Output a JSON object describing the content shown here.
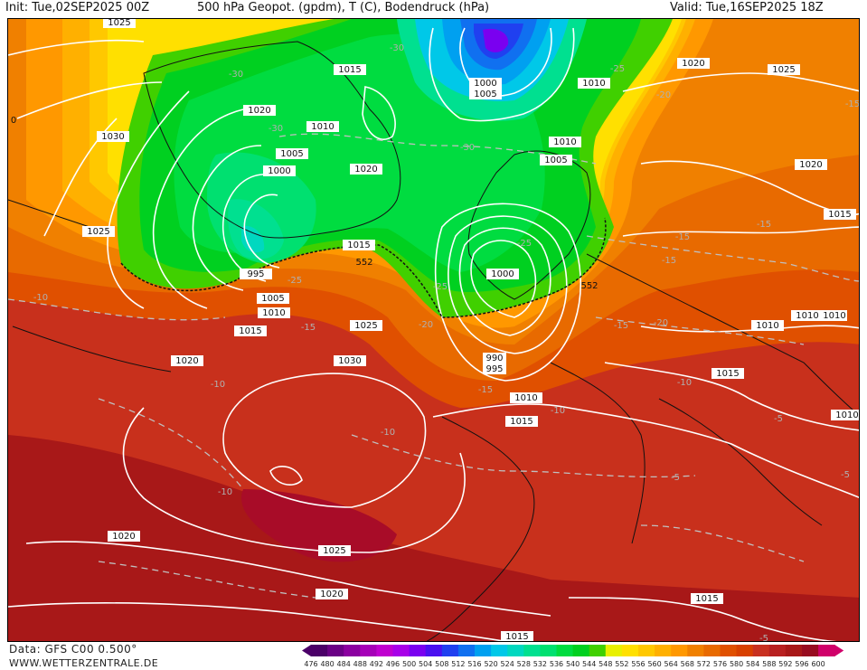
{
  "header": {
    "init": "Init: Tue,02SEP2025 00Z",
    "title": "500 hPa Geopot. (gpdm), T (C), Bodendruck (hPa)",
    "valid": "Valid: Tue,16SEP2025 18Z"
  },
  "footer": {
    "source": "Data: GFS C00 0.500°",
    "site": "WWW.WETTERZENTRALE.DE"
  },
  "colorbar": {
    "ticks": [
      "476",
      "480",
      "484",
      "488",
      "492",
      "496",
      "500",
      "504",
      "508",
      "512",
      "516",
      "520",
      "524",
      "528",
      "532",
      "536",
      "540",
      "544",
      "548",
      "552",
      "556",
      "560",
      "564",
      "568",
      "572",
      "576",
      "580",
      "584",
      "588",
      "592",
      "596",
      "600"
    ],
    "colors": [
      "#4b0068",
      "#6a0085",
      "#8b00a0",
      "#a600b8",
      "#c000d0",
      "#a800e8",
      "#7a00f0",
      "#4a10f0",
      "#2040f0",
      "#1070f0",
      "#00a0f0",
      "#00c8e8",
      "#00d8c0",
      "#00e090",
      "#00e070",
      "#00dc40",
      "#00d020",
      "#40d000",
      "#e8f000",
      "#ffe000",
      "#ffc800",
      "#ffb000",
      "#ff9800",
      "#f08000",
      "#e86a00",
      "#e05000",
      "#d84000",
      "#c83020",
      "#b82020",
      "#a81818",
      "#980c20",
      "#d0006a"
    ]
  },
  "isobars": [
    "1025",
    "1030",
    "1025",
    "1020",
    "1020",
    "1015",
    "1010",
    "1005",
    "1000",
    "1000",
    "1005",
    "1010",
    "1015",
    "1020",
    "1015",
    "1010",
    "1005",
    "1020",
    "1015",
    "1010",
    "1000",
    "990",
    "995",
    "995",
    "1005",
    "1010",
    "1015",
    "1020",
    "1025",
    "1030",
    "1020",
    "1015",
    "1010",
    "1015",
    "1010",
    "1010",
    "1015",
    "1010",
    "1020",
    "1025",
    "1020",
    "1015",
    "1015",
    "1025",
    "1020",
    "1015"
  ],
  "temps": [
    "-30",
    "-30",
    "-30",
    "-25",
    "-25",
    "-30",
    "-25",
    "-25",
    "-20",
    "-20",
    "-15",
    "-15",
    "-15",
    "-15",
    "-15",
    "-20",
    "-15",
    "-10",
    "-10",
    "-10",
    "-10",
    "-15",
    "-10",
    "-5",
    "-5",
    "-5",
    "-10",
    "-5",
    "-15",
    "-10",
    "-30",
    "-15"
  ],
  "geopot": [
    "552",
    "552"
  ],
  "edge_labels": [
    "0",
    "1025"
  ]
}
